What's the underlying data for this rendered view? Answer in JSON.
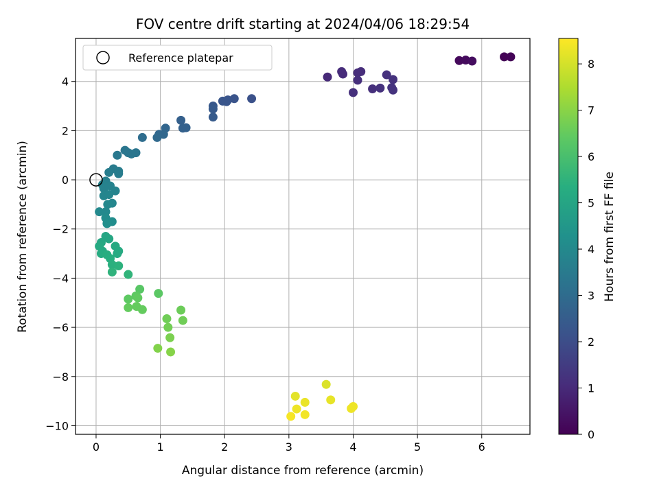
{
  "chart_data": {
    "type": "scatter",
    "title": "FOV centre drift starting at 2024/04/06 18:29:54",
    "xlabel": "Angular distance from reference (arcmin)",
    "ylabel": "Rotation from reference (arcmin)",
    "xlim": [
      -0.32,
      6.75
    ],
    "ylim": [
      -10.35,
      5.75
    ],
    "xticks": [
      0,
      1,
      2,
      3,
      4,
      5,
      6
    ],
    "yticks": [
      -10,
      -8,
      -6,
      -4,
      -2,
      0,
      2,
      4
    ],
    "grid": true,
    "legend": {
      "position": "top-left",
      "entries": [
        "Reference platepar"
      ]
    },
    "reference_point": {
      "name": "Reference platepar",
      "x": 0,
      "y": 0
    },
    "colorbar": {
      "label": "Hours from first FF file",
      "range": [
        0,
        8.55
      ],
      "ticks": [
        0,
        1,
        2,
        3,
        4,
        5,
        6,
        7,
        8
      ],
      "colormap": "viridis"
    },
    "points": [
      {
        "x": 6.35,
        "y": 5.0,
        "t": 0.05
      },
      {
        "x": 6.45,
        "y": 5.0,
        "t": 0.08
      },
      {
        "x": 5.65,
        "y": 4.85,
        "t": 0.2
      },
      {
        "x": 5.75,
        "y": 4.87,
        "t": 0.25
      },
      {
        "x": 5.85,
        "y": 4.83,
        "t": 0.3
      },
      {
        "x": 3.6,
        "y": 4.18,
        "t": 1.0
      },
      {
        "x": 3.82,
        "y": 4.4,
        "t": 1.05
      },
      {
        "x": 3.84,
        "y": 4.3,
        "t": 1.05
      },
      {
        "x": 4.07,
        "y": 4.35,
        "t": 1.1
      },
      {
        "x": 4.12,
        "y": 4.4,
        "t": 1.1
      },
      {
        "x": 4.07,
        "y": 4.05,
        "t": 1.12
      },
      {
        "x": 4.0,
        "y": 3.55,
        "t": 1.15
      },
      {
        "x": 4.3,
        "y": 3.7,
        "t": 1.15
      },
      {
        "x": 4.42,
        "y": 3.73,
        "t": 1.2
      },
      {
        "x": 4.52,
        "y": 4.27,
        "t": 1.2
      },
      {
        "x": 4.62,
        "y": 4.08,
        "t": 1.22
      },
      {
        "x": 4.6,
        "y": 3.75,
        "t": 1.25
      },
      {
        "x": 4.62,
        "y": 3.65,
        "t": 1.25
      },
      {
        "x": 2.42,
        "y": 3.3,
        "t": 2.1
      },
      {
        "x": 2.15,
        "y": 3.3,
        "t": 2.2
      },
      {
        "x": 2.05,
        "y": 3.25,
        "t": 2.2
      },
      {
        "x": 1.97,
        "y": 3.2,
        "t": 2.25
      },
      {
        "x": 2.03,
        "y": 3.18,
        "t": 2.25
      },
      {
        "x": 1.82,
        "y": 3.0,
        "t": 2.35
      },
      {
        "x": 1.82,
        "y": 2.88,
        "t": 2.4
      },
      {
        "x": 1.82,
        "y": 2.55,
        "t": 2.45
      },
      {
        "x": 1.32,
        "y": 2.42,
        "t": 2.6
      },
      {
        "x": 1.35,
        "y": 2.1,
        "t": 2.65
      },
      {
        "x": 1.4,
        "y": 2.12,
        "t": 2.65
      },
      {
        "x": 1.08,
        "y": 2.1,
        "t": 2.8
      },
      {
        "x": 1.05,
        "y": 1.85,
        "t": 2.85
      },
      {
        "x": 0.98,
        "y": 1.85,
        "t": 2.85
      },
      {
        "x": 0.95,
        "y": 1.72,
        "t": 2.9
      },
      {
        "x": 0.72,
        "y": 1.72,
        "t": 3.05
      },
      {
        "x": 0.62,
        "y": 1.1,
        "t": 3.3
      },
      {
        "x": 0.55,
        "y": 1.05,
        "t": 3.35
      },
      {
        "x": 0.5,
        "y": 1.1,
        "t": 3.35
      },
      {
        "x": 0.45,
        "y": 1.2,
        "t": 3.35
      },
      {
        "x": 0.33,
        "y": 1.0,
        "t": 3.4
      },
      {
        "x": 0.27,
        "y": 0.45,
        "t": 3.5
      },
      {
        "x": 0.35,
        "y": 0.35,
        "t": 3.55
      },
      {
        "x": 0.35,
        "y": 0.25,
        "t": 3.55
      },
      {
        "x": 0.2,
        "y": 0.3,
        "t": 3.6
      },
      {
        "x": 0.15,
        "y": -0.05,
        "t": 3.7
      },
      {
        "x": 0.1,
        "y": -0.2,
        "t": 3.75
      },
      {
        "x": 0.12,
        "y": -0.35,
        "t": 3.75
      },
      {
        "x": 0.22,
        "y": -0.25,
        "t": 3.75
      },
      {
        "x": 0.3,
        "y": -0.45,
        "t": 3.8
      },
      {
        "x": 0.12,
        "y": -0.65,
        "t": 3.85
      },
      {
        "x": 0.2,
        "y": -0.6,
        "t": 3.85
      },
      {
        "x": 0.25,
        "y": -0.95,
        "t": 3.9
      },
      {
        "x": 0.18,
        "y": -1.0,
        "t": 3.95
      },
      {
        "x": 0.05,
        "y": -1.3,
        "t": 4.0
      },
      {
        "x": 0.15,
        "y": -1.3,
        "t": 4.0
      },
      {
        "x": 0.15,
        "y": -1.55,
        "t": 4.1
      },
      {
        "x": 0.25,
        "y": -1.7,
        "t": 4.15
      },
      {
        "x": 0.17,
        "y": -1.78,
        "t": 4.2
      },
      {
        "x": 0.15,
        "y": -2.3,
        "t": 5.0
      },
      {
        "x": 0.2,
        "y": -2.4,
        "t": 5.05
      },
      {
        "x": 0.08,
        "y": -2.55,
        "t": 5.1
      },
      {
        "x": 0.05,
        "y": -2.7,
        "t": 5.15
      },
      {
        "x": 0.3,
        "y": -2.7,
        "t": 5.15
      },
      {
        "x": 0.1,
        "y": -2.9,
        "t": 5.2
      },
      {
        "x": 0.35,
        "y": -2.9,
        "t": 5.2
      },
      {
        "x": 0.33,
        "y": -3.0,
        "t": 5.2
      },
      {
        "x": 0.08,
        "y": -3.0,
        "t": 5.25
      },
      {
        "x": 0.17,
        "y": -3.05,
        "t": 5.3
      },
      {
        "x": 0.22,
        "y": -3.2,
        "t": 5.35
      },
      {
        "x": 0.25,
        "y": -3.45,
        "t": 5.4
      },
      {
        "x": 0.35,
        "y": -3.5,
        "t": 5.45
      },
      {
        "x": 0.25,
        "y": -3.75,
        "t": 5.5
      },
      {
        "x": 0.5,
        "y": -3.85,
        "t": 5.55
      },
      {
        "x": 0.68,
        "y": -4.45,
        "t": 6.3
      },
      {
        "x": 0.97,
        "y": -4.62,
        "t": 6.35
      },
      {
        "x": 0.62,
        "y": -4.72,
        "t": 6.4
      },
      {
        "x": 0.5,
        "y": -4.85,
        "t": 6.4
      },
      {
        "x": 0.65,
        "y": -4.8,
        "t": 6.45
      },
      {
        "x": 0.63,
        "y": -5.15,
        "t": 6.5
      },
      {
        "x": 0.5,
        "y": -5.2,
        "t": 6.5
      },
      {
        "x": 0.72,
        "y": -5.28,
        "t": 6.5
      },
      {
        "x": 1.32,
        "y": -5.3,
        "t": 6.6
      },
      {
        "x": 1.1,
        "y": -5.65,
        "t": 6.65
      },
      {
        "x": 1.35,
        "y": -5.72,
        "t": 6.65
      },
      {
        "x": 1.12,
        "y": -6.0,
        "t": 6.7
      },
      {
        "x": 1.15,
        "y": -6.42,
        "t": 6.8
      },
      {
        "x": 0.96,
        "y": -6.85,
        "t": 6.9
      },
      {
        "x": 1.16,
        "y": -7.0,
        "t": 6.95
      },
      {
        "x": 3.58,
        "y": -8.32,
        "t": 8.1
      },
      {
        "x": 3.1,
        "y": -8.8,
        "t": 8.2
      },
      {
        "x": 3.65,
        "y": -8.95,
        "t": 8.25
      },
      {
        "x": 3.25,
        "y": -9.05,
        "t": 8.3
      },
      {
        "x": 4.0,
        "y": -9.22,
        "t": 8.35
      },
      {
        "x": 3.97,
        "y": -9.3,
        "t": 8.35
      },
      {
        "x": 3.12,
        "y": -9.32,
        "t": 8.35
      },
      {
        "x": 3.25,
        "y": -9.55,
        "t": 8.4
      },
      {
        "x": 3.03,
        "y": -9.62,
        "t": 8.45
      }
    ]
  }
}
